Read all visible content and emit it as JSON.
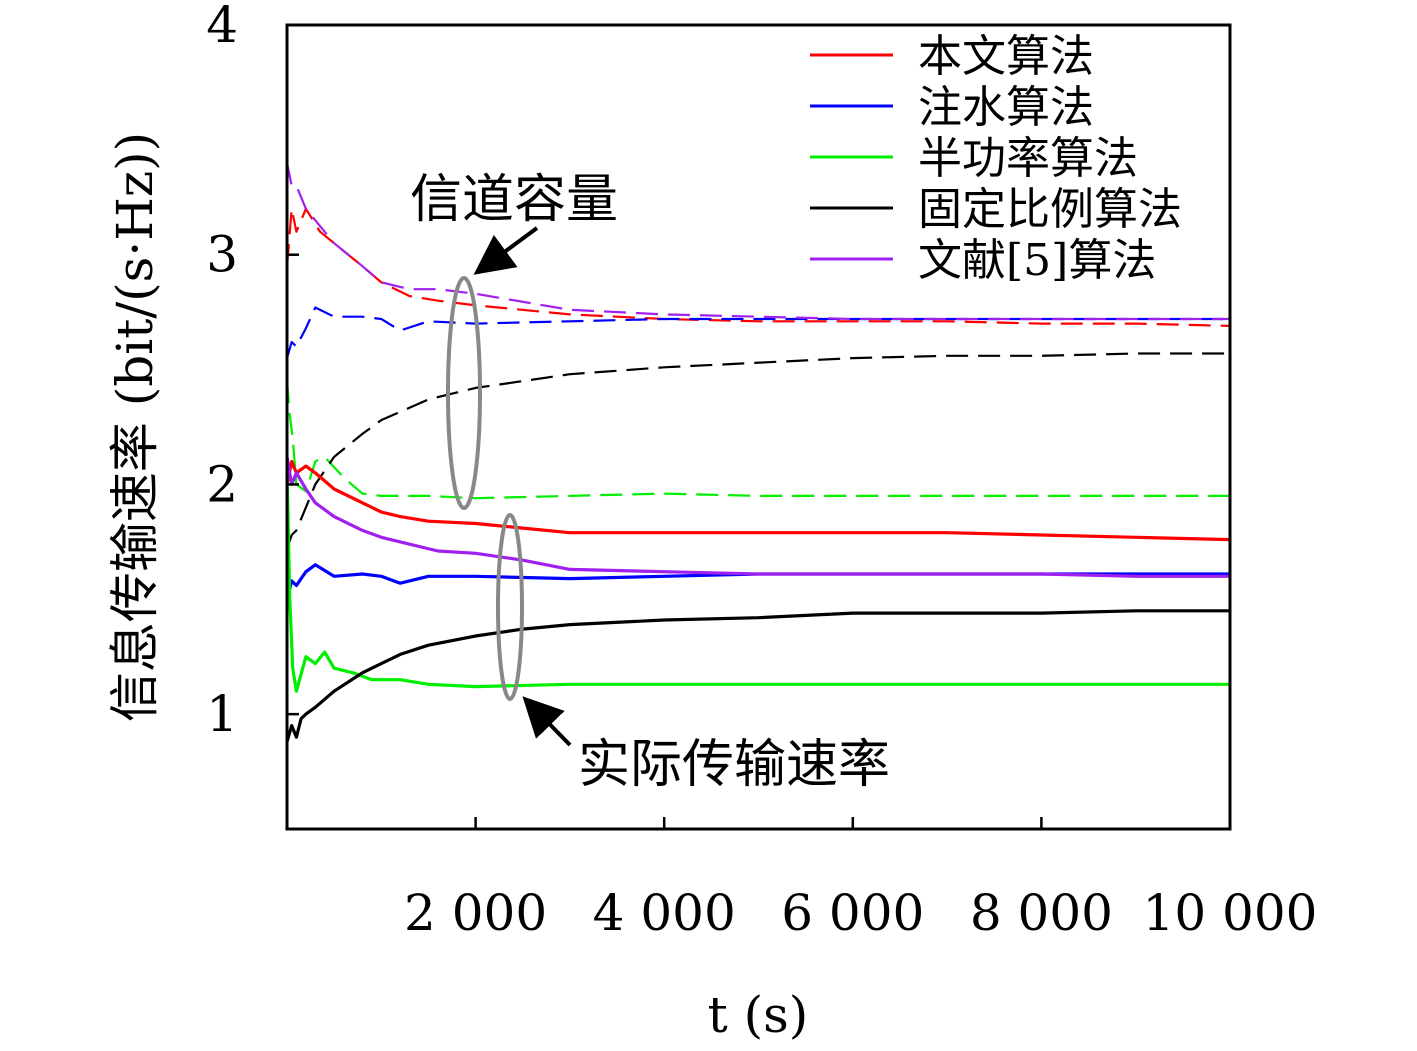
{
  "chart_data": {
    "type": "line",
    "xlabel": "t (s)",
    "ylabel": "信息传输速率 (bit/(s·Hz))",
    "xlim": [
      0,
      10000
    ],
    "ylim": [
      0.5,
      4
    ],
    "x_ticks": [
      2000,
      4000,
      6000,
      8000,
      10000
    ],
    "x_tick_labels": [
      "2 000",
      "4 000",
      "6 000",
      "8 000",
      "10 000"
    ],
    "y_ticks": [
      1,
      2,
      3,
      4
    ],
    "y_tick_labels": [
      "1",
      "2",
      "3",
      "4"
    ],
    "grid": false,
    "legend_position": "top-right",
    "legend": [
      {
        "label": "本文算法",
        "color": "#ff0000"
      },
      {
        "label": "注水算法",
        "color": "#0000ff"
      },
      {
        "label": "半功率算法",
        "color": "#00ee00"
      },
      {
        "label": "固定比例算法",
        "color": "#000000"
      },
      {
        "label": "文献[5]算法",
        "color": "#a020f0"
      }
    ],
    "annotations": {
      "capacity": "信道容量",
      "actual_rate": "实际传输速率"
    },
    "series": [
      {
        "legend_index": 0,
        "style": "dashed",
        "color": "#ff0000",
        "x": [
          0,
          50,
          100,
          200,
          350,
          500,
          800,
          1000,
          1300,
          1600,
          2000,
          3000,
          4000,
          5000,
          6000,
          7000,
          8000,
          9000,
          10000
        ],
        "y": [
          2.95,
          3.2,
          3.1,
          3.2,
          3.1,
          3.05,
          2.95,
          2.88,
          2.82,
          2.8,
          2.78,
          2.74,
          2.72,
          2.71,
          2.71,
          2.71,
          2.7,
          2.7,
          2.69
        ]
      },
      {
        "legend_index": 1,
        "style": "dashed",
        "color": "#0000ff",
        "x": [
          0,
          50,
          100,
          200,
          300,
          500,
          800,
          1000,
          1200,
          1500,
          2000,
          3000,
          4000,
          5000,
          6000,
          7000,
          8000,
          9000,
          10000
        ],
        "y": [
          2.55,
          2.62,
          2.6,
          2.68,
          2.77,
          2.73,
          2.73,
          2.72,
          2.67,
          2.71,
          2.7,
          2.71,
          2.72,
          2.72,
          2.72,
          2.72,
          2.72,
          2.72,
          2.72
        ]
      },
      {
        "legend_index": 2,
        "style": "dashed",
        "color": "#00ee00",
        "x": [
          0,
          30,
          60,
          100,
          200,
          300,
          400,
          600,
          800,
          1000,
          1500,
          2000,
          3000,
          4000,
          5000,
          6000,
          7000,
          8000,
          9000,
          10000
        ],
        "y": [
          2.45,
          2.3,
          2.2,
          2.0,
          1.97,
          2.1,
          2.12,
          2.03,
          1.96,
          1.95,
          1.95,
          1.94,
          1.95,
          1.96,
          1.95,
          1.95,
          1.95,
          1.95,
          1.95,
          1.95
        ]
      },
      {
        "legend_index": 3,
        "style": "dashed",
        "color": "#000000",
        "x": [
          0,
          50,
          100,
          200,
          300,
          500,
          800,
          1000,
          1500,
          2000,
          2500,
          3000,
          4000,
          5000,
          6000,
          7000,
          8000,
          9000,
          10000
        ],
        "y": [
          1.72,
          1.78,
          1.8,
          1.9,
          2.0,
          2.12,
          2.22,
          2.28,
          2.37,
          2.42,
          2.45,
          2.48,
          2.51,
          2.53,
          2.55,
          2.56,
          2.56,
          2.57,
          2.57
        ]
      },
      {
        "legend_index": 4,
        "style": "dashed",
        "color": "#a020f0",
        "x": [
          0,
          50,
          100,
          200,
          300,
          500,
          800,
          1000,
          1300,
          1600,
          2000,
          3000,
          4000,
          5000,
          6000,
          7000,
          8000,
          9000,
          10000
        ],
        "y": [
          3.4,
          3.3,
          3.3,
          3.2,
          3.15,
          3.05,
          2.95,
          2.88,
          2.85,
          2.85,
          2.83,
          2.76,
          2.74,
          2.73,
          2.72,
          2.72,
          2.72,
          2.72,
          2.72
        ]
      },
      {
        "legend_index": 0,
        "style": "solid",
        "color": "#ff0000",
        "x": [
          0,
          50,
          100,
          200,
          300,
          500,
          800,
          1000,
          1200,
          1500,
          2000,
          2500,
          3000,
          4000,
          5000,
          6000,
          7000,
          8000,
          9000,
          10000
        ],
        "y": [
          2.0,
          2.1,
          2.05,
          2.08,
          2.05,
          1.98,
          1.92,
          1.88,
          1.86,
          1.84,
          1.83,
          1.81,
          1.79,
          1.79,
          1.79,
          1.79,
          1.79,
          1.78,
          1.77,
          1.76
        ]
      },
      {
        "legend_index": 1,
        "style": "solid",
        "color": "#0000ff",
        "x": [
          0,
          50,
          100,
          200,
          300,
          500,
          800,
          1000,
          1200,
          1500,
          2000,
          3000,
          4000,
          5000,
          6000,
          7000,
          8000,
          9000,
          10000
        ],
        "y": [
          1.5,
          1.58,
          1.56,
          1.62,
          1.65,
          1.6,
          1.61,
          1.6,
          1.57,
          1.6,
          1.6,
          1.59,
          1.6,
          1.61,
          1.61,
          1.61,
          1.61,
          1.61,
          1.61
        ]
      },
      {
        "legend_index": 2,
        "style": "solid",
        "color": "#00ee00",
        "x": [
          0,
          30,
          60,
          100,
          200,
          300,
          400,
          500,
          700,
          900,
          1200,
          1500,
          2000,
          3000,
          4000,
          5000,
          6000,
          7000,
          8000,
          9000,
          10000
        ],
        "y": [
          2.05,
          1.5,
          1.2,
          1.1,
          1.25,
          1.22,
          1.27,
          1.2,
          1.18,
          1.15,
          1.15,
          1.13,
          1.12,
          1.13,
          1.13,
          1.13,
          1.13,
          1.13,
          1.13,
          1.13,
          1.13
        ]
      },
      {
        "legend_index": 3,
        "style": "solid",
        "color": "#000000",
        "x": [
          0,
          50,
          100,
          150,
          200,
          300,
          500,
          800,
          1000,
          1200,
          1500,
          2000,
          2500,
          3000,
          4000,
          5000,
          6000,
          7000,
          8000,
          9000,
          10000
        ],
        "y": [
          0.88,
          0.95,
          0.9,
          0.98,
          1.0,
          1.03,
          1.1,
          1.18,
          1.22,
          1.26,
          1.3,
          1.34,
          1.37,
          1.39,
          1.41,
          1.42,
          1.44,
          1.44,
          1.44,
          1.45,
          1.45
        ]
      },
      {
        "legend_index": 4,
        "style": "solid",
        "color": "#a020f0",
        "x": [
          0,
          50,
          100,
          200,
          300,
          500,
          800,
          1000,
          1300,
          1600,
          2000,
          2500,
          3000,
          4000,
          5000,
          6000,
          7000,
          8000,
          9000,
          10000
        ],
        "y": [
          2.12,
          2.0,
          2.05,
          1.98,
          1.92,
          1.86,
          1.8,
          1.77,
          1.74,
          1.71,
          1.7,
          1.67,
          1.63,
          1.62,
          1.61,
          1.61,
          1.61,
          1.61,
          1.6,
          1.6
        ]
      }
    ]
  }
}
